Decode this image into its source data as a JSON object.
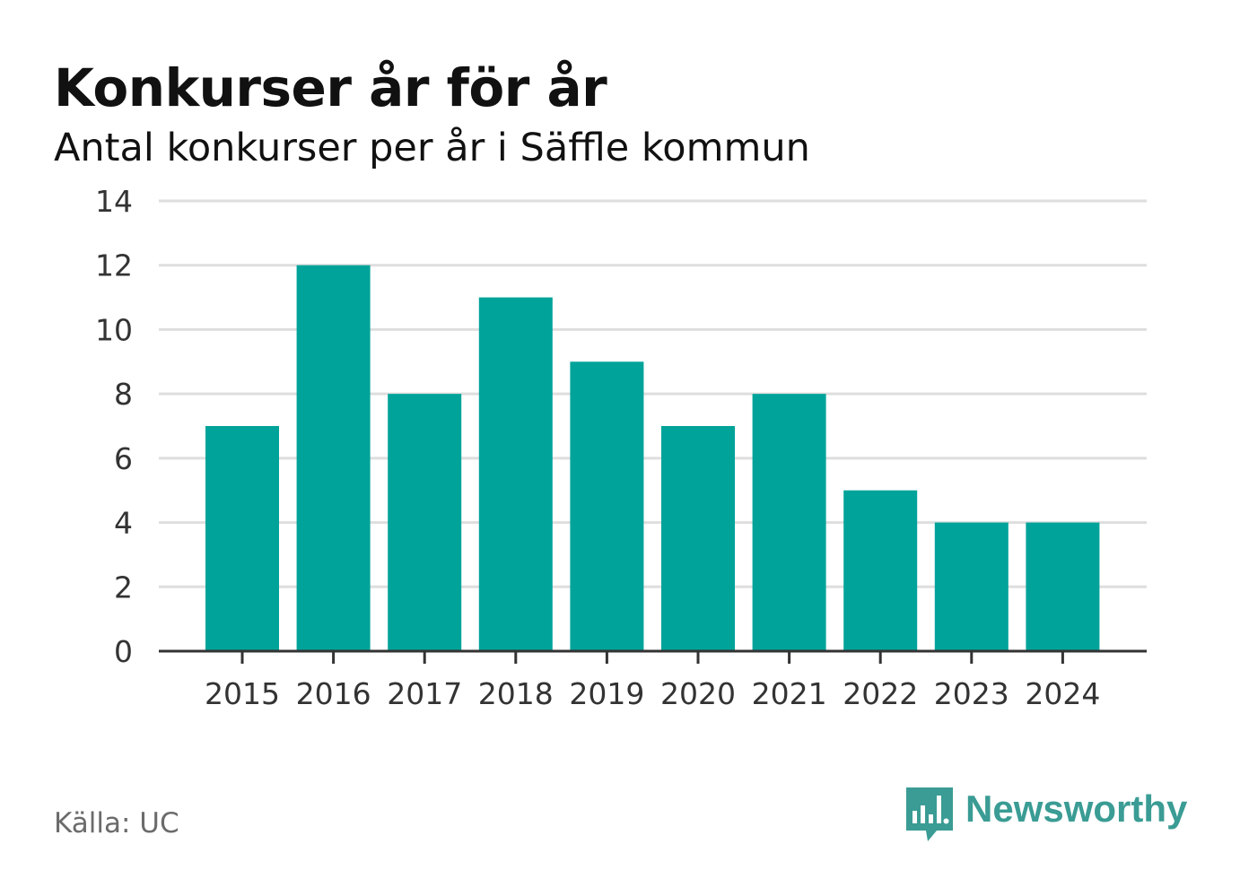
{
  "header": {
    "title": "Konkurser år för år",
    "subtitle": "Antal konkurser per år i Säffle kommun"
  },
  "footer": {
    "source": "Källa: UC",
    "brand": "Newsworthy"
  },
  "colors": {
    "bar": "#00a39a",
    "grid": "#dedede",
    "axis": "#333333",
    "brand": "#3a9c94"
  },
  "chart_data": {
    "type": "bar",
    "title": "Konkurser år för år",
    "subtitle": "Antal konkurser per år i Säffle kommun",
    "xlabel": "",
    "ylabel": "",
    "categories": [
      "2015",
      "2016",
      "2017",
      "2018",
      "2019",
      "2020",
      "2021",
      "2022",
      "2023",
      "2024"
    ],
    "values": [
      7,
      12,
      8,
      11,
      9,
      7,
      8,
      5,
      4,
      4
    ],
    "ylim": [
      0,
      14
    ],
    "yticks": [
      0,
      2,
      4,
      6,
      8,
      10,
      12,
      14
    ],
    "grid": true,
    "legend": "none"
  }
}
